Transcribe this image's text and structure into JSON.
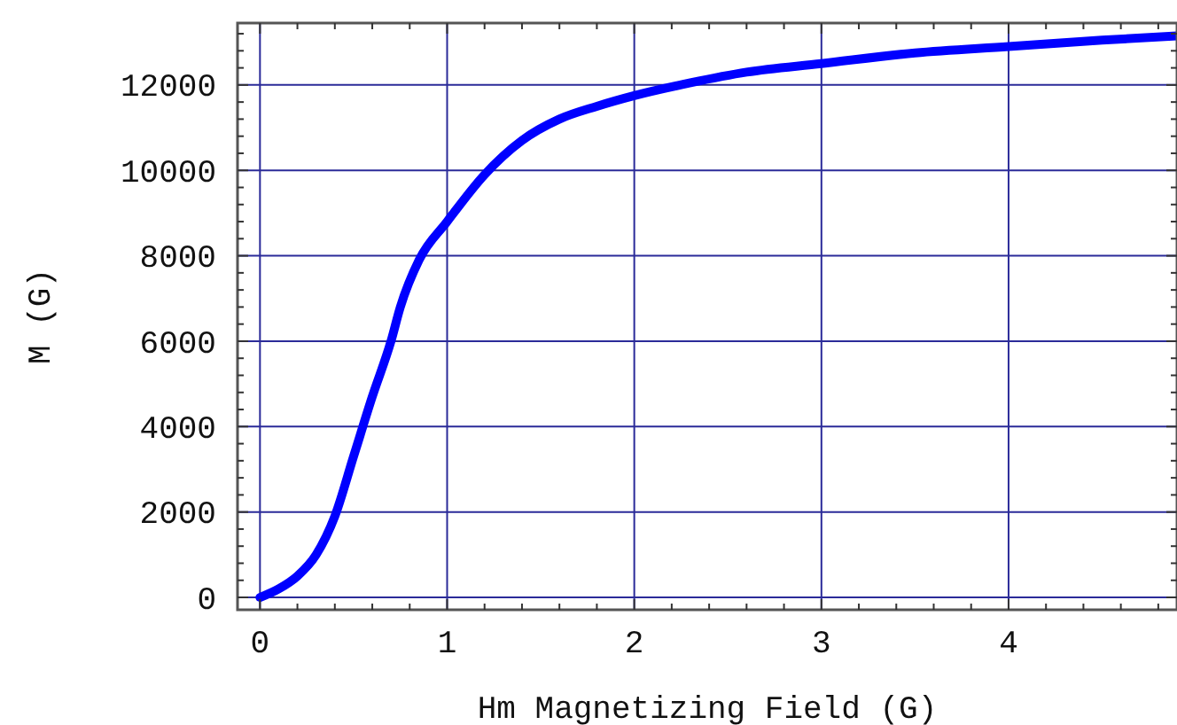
{
  "chart_data": {
    "type": "line",
    "xlabel": "Hm Magnetizing Field (G)",
    "ylabel": "M (G)",
    "x": [
      0,
      0.1,
      0.2,
      0.3,
      0.4,
      0.5,
      0.6,
      0.7,
      0.75,
      0.85,
      1,
      1.2,
      1.4,
      1.6,
      1.8,
      2,
      2.3,
      2.6,
      3,
      3.5,
      4,
      4.5,
      4.9
    ],
    "series": [
      {
        "color": "#0000ff",
        "values": [
          0,
          200,
          500,
          1000,
          1900,
          3300,
          4700,
          6000,
          6800,
          7900,
          8800,
          9900,
          10700,
          11200,
          11500,
          11750,
          12050,
          12300,
          12500,
          12750,
          12900,
          13050,
          13150
        ]
      }
    ],
    "xlim": [
      -0.12,
      4.9
    ],
    "ylim": [
      -290,
      13450
    ],
    "xticks": [
      0,
      {
        "value": 0.2,
        "label": null
      },
      {
        "value": 0.4,
        "label": null
      },
      {
        "value": 0.6,
        "label": null
      },
      {
        "value": 0.8,
        "label": null
      },
      1,
      {
        "value": 1.2,
        "label": null
      },
      {
        "value": 1.4,
        "label": null
      },
      {
        "value": 1.6,
        "label": null
      },
      {
        "value": 1.8,
        "label": null
      },
      2,
      {
        "value": 2.2,
        "label": null
      },
      {
        "value": 2.4,
        "label": null
      },
      {
        "value": 2.6,
        "label": null
      },
      {
        "value": 2.8,
        "label": null
      },
      3,
      {
        "value": 3.2,
        "label": null
      },
      {
        "value": 3.4,
        "label": null
      },
      {
        "value": 3.6,
        "label": null
      },
      {
        "value": 3.8,
        "label": null
      },
      4,
      {
        "value": 4.2,
        "label": null
      },
      {
        "value": 4.4,
        "label": null
      },
      {
        "value": 4.6,
        "label": null
      },
      {
        "value": 4.8,
        "label": null
      }
    ],
    "yticks": [
      0,
      {
        "value": 400,
        "label": null
      },
      {
        "value": 800,
        "label": null
      },
      {
        "value": 1200,
        "label": null
      },
      {
        "value": 1600,
        "label": null
      },
      2000,
      {
        "value": 2400,
        "label": null
      },
      {
        "value": 2800,
        "label": null
      },
      {
        "value": 3200,
        "label": null
      },
      {
        "value": 3600,
        "label": null
      },
      4000,
      {
        "value": 4400,
        "label": null
      },
      {
        "value": 4800,
        "label": null
      },
      {
        "value": 5200,
        "label": null
      },
      {
        "value": 5600,
        "label": null
      },
      6000,
      {
        "value": 6400,
        "label": null
      },
      {
        "value": 6800,
        "label": null
      },
      {
        "value": 7200,
        "label": null
      },
      {
        "value": 7600,
        "label": null
      },
      8000,
      {
        "value": 8400,
        "label": null
      },
      {
        "value": 8800,
        "label": null
      },
      {
        "value": 9200,
        "label": null
      },
      {
        "value": 9600,
        "label": null
      },
      10000,
      {
        "value": 10400,
        "label": null
      },
      {
        "value": 10800,
        "label": null
      },
      {
        "value": 11200,
        "label": null
      },
      {
        "value": 11600,
        "label": null
      },
      12000,
      {
        "value": 12400,
        "label": null
      },
      {
        "value": 12800,
        "label": null
      },
      {
        "value": 13200,
        "label": null
      }
    ],
    "grid": true,
    "marker": "none",
    "line_style": "solid"
  }
}
